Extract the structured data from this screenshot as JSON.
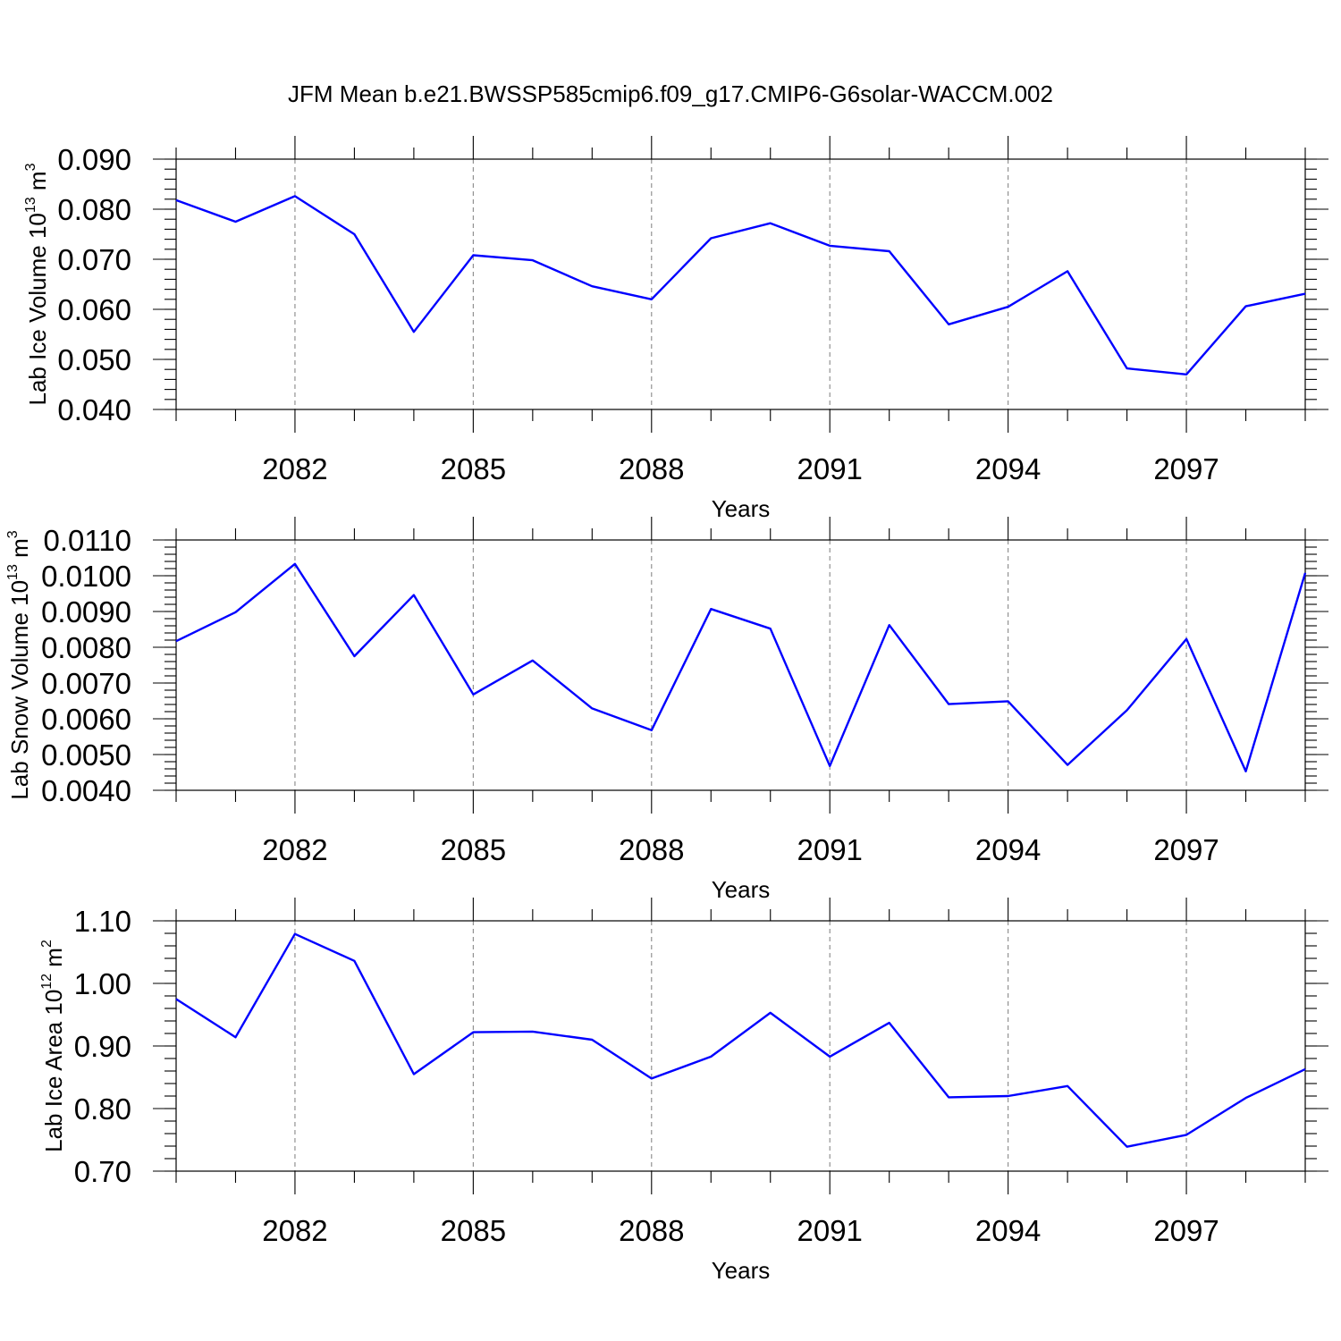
{
  "figure": {
    "title": "JFM Mean b.e21.BWSSP585cmip6.f09_g17.CMIP6-G6solar-WACCM.002"
  },
  "colors": {
    "line": "#0000ff",
    "axes": "#000000",
    "grid": "#888888"
  },
  "chart_data": [
    {
      "type": "line",
      "title": "",
      "xlabel": "Years",
      "ylabel_main": "Lab Ice Volume 10",
      "ylabel_exp": "13",
      "ylabel_unit": " m",
      "ylabel_unit_exp": "3",
      "xlim": [
        2080,
        2099
      ],
      "ylim": [
        0.04,
        0.09
      ],
      "grid": "vertical dashed at major x ticks",
      "x_ticks": [
        2082,
        2085,
        2088,
        2091,
        2094,
        2097
      ],
      "x_tick_labels": [
        "2082",
        "2085",
        "2088",
        "2091",
        "2094",
        "2097"
      ],
      "y_ticks": [
        0.04,
        0.05,
        0.06,
        0.07,
        0.08,
        0.09
      ],
      "y_tick_labels": [
        "0.040",
        "0.050",
        "0.060",
        "0.070",
        "0.080",
        "0.090"
      ],
      "y_minor_step": 0.002,
      "x": [
        2080,
        2081,
        2082,
        2083,
        2084,
        2085,
        2086,
        2087,
        2088,
        2089,
        2090,
        2091,
        2092,
        2093,
        2094,
        2095,
        2096,
        2097,
        2098,
        2099
      ],
      "series": [
        {
          "values": [
            0.0818,
            0.0775,
            0.0826,
            0.075,
            0.0555,
            0.0708,
            0.0698,
            0.0646,
            0.062,
            0.0742,
            0.0772,
            0.0727,
            0.0716,
            0.057,
            0.0605,
            0.0676,
            0.0482,
            0.047,
            0.0606,
            0.0631
          ]
        }
      ]
    },
    {
      "type": "line",
      "title": "",
      "xlabel": "Years",
      "ylabel_main": "Lab Snow Volume 10",
      "ylabel_exp": "13",
      "ylabel_unit": " m",
      "ylabel_unit_exp": "3",
      "xlim": [
        2080,
        2099
      ],
      "ylim": [
        0.004,
        0.011
      ],
      "grid": "vertical dashed at major x ticks",
      "x_ticks": [
        2082,
        2085,
        2088,
        2091,
        2094,
        2097
      ],
      "x_tick_labels": [
        "2082",
        "2085",
        "2088",
        "2091",
        "2094",
        "2097"
      ],
      "y_ticks": [
        0.004,
        0.005,
        0.006,
        0.007,
        0.008,
        0.009,
        0.01,
        0.011
      ],
      "y_tick_labels": [
        "0.0040",
        "0.0050",
        "0.0060",
        "0.0070",
        "0.0080",
        "0.0090",
        "0.0100",
        "0.0110"
      ],
      "y_minor_step": 0.0002,
      "x": [
        2080,
        2081,
        2082,
        2083,
        2084,
        2085,
        2086,
        2087,
        2088,
        2089,
        2090,
        2091,
        2092,
        2093,
        2094,
        2095,
        2096,
        2097,
        2098,
        2099
      ],
      "series": [
        {
          "values": [
            0.00817,
            0.00898,
            0.01033,
            0.00775,
            0.00946,
            0.00668,
            0.00763,
            0.00629,
            0.00568,
            0.00907,
            0.00852,
            0.00468,
            0.00862,
            0.00641,
            0.00649,
            0.00471,
            0.00624,
            0.00823,
            0.00453,
            0.01008
          ]
        }
      ]
    },
    {
      "type": "line",
      "title": "",
      "xlabel": "Years",
      "ylabel_main": "Lab Ice Area 10",
      "ylabel_exp": "12",
      "ylabel_unit": " m",
      "ylabel_unit_exp": "2",
      "xlim": [
        2080,
        2099
      ],
      "ylim": [
        0.7,
        1.1
      ],
      "grid": "vertical dashed at major x ticks",
      "x_ticks": [
        2082,
        2085,
        2088,
        2091,
        2094,
        2097
      ],
      "x_tick_labels": [
        "2082",
        "2085",
        "2088",
        "2091",
        "2094",
        "2097"
      ],
      "y_ticks": [
        0.7,
        0.8,
        0.9,
        1.0,
        1.1
      ],
      "y_tick_labels": [
        "0.70",
        "0.80",
        "0.90",
        "1.00",
        "1.10"
      ],
      "y_minor_step": 0.02,
      "x": [
        2080,
        2081,
        2082,
        2083,
        2084,
        2085,
        2086,
        2087,
        2088,
        2089,
        2090,
        2091,
        2092,
        2093,
        2094,
        2095,
        2096,
        2097,
        2098,
        2099
      ],
      "series": [
        {
          "values": [
            0.975,
            0.914,
            1.079,
            1.036,
            0.855,
            0.922,
            0.923,
            0.91,
            0.848,
            0.883,
            0.953,
            0.883,
            0.937,
            0.818,
            0.82,
            0.836,
            0.739,
            0.758,
            0.817,
            0.863
          ]
        }
      ]
    }
  ]
}
